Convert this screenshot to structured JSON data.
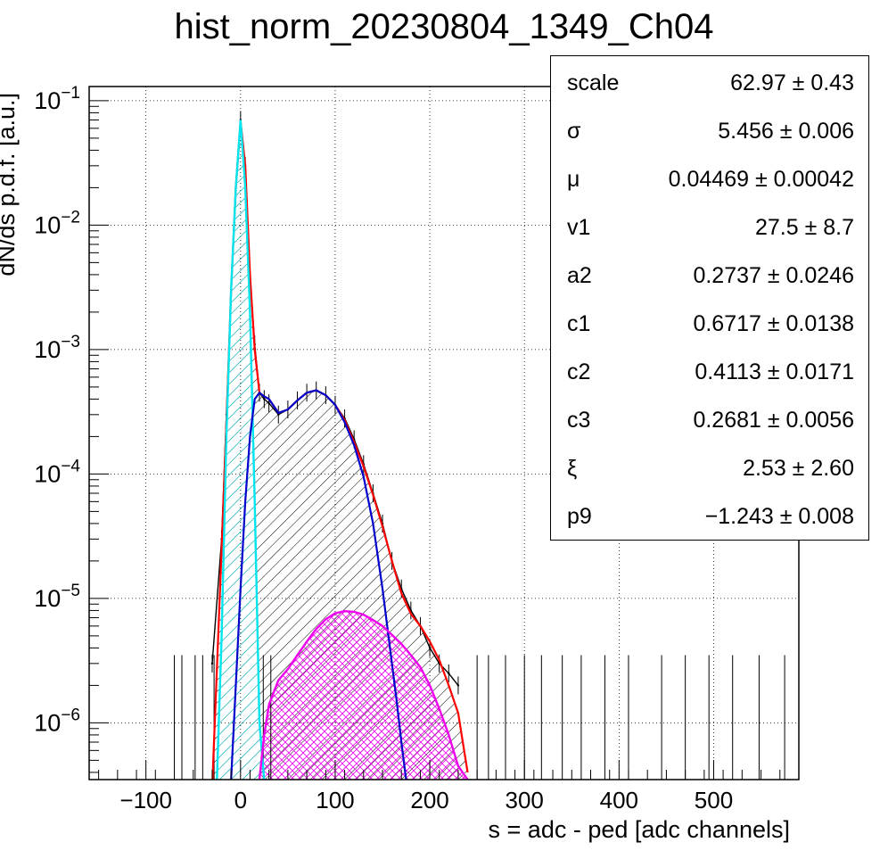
{
  "title": "hist_norm_20230804_1349_Ch04",
  "chart_data": {
    "type": "line",
    "title": "hist_norm_20230804_1349_Ch04",
    "xlabel": "s = adc - ped [adc channels]",
    "ylabel": "dN/ds p.d.f. [a.u.]",
    "xlim": [
      -160,
      590
    ],
    "ylim": [
      3.5e-07,
      0.13
    ],
    "y_scale": "log",
    "grid": true,
    "x_ticks": [
      "−100",
      "0",
      "100",
      "200",
      "300",
      "400",
      "500"
    ],
    "x_tick_values": [
      -100,
      0,
      100,
      200,
      300,
      400,
      500
    ],
    "y_tick_values": [
      1e-06,
      1e-05,
      0.0001,
      0.001,
      0.01,
      0.1
    ],
    "y_tick_exponents": [
      "−6",
      "−5",
      "−4",
      "−3",
      "−2",
      "−1"
    ],
    "y_tick_base": "10",
    "series": [
      {
        "role": "histogram",
        "color": "#000000",
        "x": [
          -30,
          -20,
          -15,
          -10,
          -5,
          0,
          5,
          10,
          15,
          20,
          25,
          30,
          40,
          50,
          60,
          70,
          80,
          90,
          100,
          110,
          120,
          130,
          140,
          150,
          160,
          170,
          180,
          190,
          200,
          210,
          220,
          230
        ],
        "y": [
          3e-06,
          3e-05,
          0.0003,
          0.003,
          0.02,
          0.07,
          0.03,
          0.004,
          0.0011,
          0.00045,
          0.0004,
          0.00037,
          0.0003,
          0.00033,
          0.00039,
          0.00045,
          0.00047,
          0.00043,
          0.00036,
          0.00028,
          0.00019,
          0.00012,
          7e-05,
          4e-05,
          2e-05,
          1.2e-05,
          8e-06,
          6e-06,
          4e-06,
          3e-06,
          2.5e-06,
          2e-06
        ]
      },
      {
        "role": "total fit",
        "color": "#ff0000",
        "x": [
          -30,
          -20,
          -15,
          -10,
          -5,
          0,
          5,
          10,
          15,
          20,
          25,
          30,
          40,
          50,
          60,
          70,
          80,
          90,
          100,
          110,
          120,
          130,
          140,
          150,
          160,
          170,
          180,
          190,
          200,
          210,
          220,
          230,
          240
        ],
        "y": [
          3e-07,
          2.5e-05,
          0.00025,
          0.003,
          0.02,
          0.068,
          0.03,
          0.004,
          0.001,
          0.00045,
          0.00042,
          0.0004,
          0.00031,
          0.00033,
          0.00039,
          0.00045,
          0.00047,
          0.00043,
          0.00036,
          0.00027,
          0.00018,
          0.000115,
          6.8e-05,
          3.8e-05,
          2e-05,
          1.1e-05,
          7.5e-06,
          6e-06,
          4.5e-06,
          3.2e-06,
          2e-06,
          1.2e-06,
          4e-07
        ]
      },
      {
        "role": "pedestal component",
        "color": "#00e5ee",
        "x": [
          -25,
          -20,
          -15,
          -10,
          -5,
          0,
          5,
          10,
          15,
          20,
          25
        ],
        "y": [
          3.5e-07,
          5e-06,
          0.0002,
          0.003,
          0.02,
          0.07,
          0.02,
          0.002,
          6e-05,
          1e-06,
          3.5e-07
        ]
      },
      {
        "role": "signal component",
        "color": "#0000cc",
        "x": [
          -10,
          -5,
          0,
          5,
          10,
          15,
          20,
          25,
          30,
          40,
          50,
          60,
          70,
          80,
          90,
          100,
          110,
          120,
          130,
          140,
          150,
          160,
          165,
          170,
          175
        ],
        "y": [
          3.5e-07,
          2e-06,
          1.2e-05,
          6e-05,
          0.0002,
          0.0004,
          0.00045,
          0.00042,
          0.0004,
          0.00031,
          0.00033,
          0.00039,
          0.00045,
          0.00047,
          0.00043,
          0.00036,
          0.00026,
          0.00017,
          9.5e-05,
          4e-05,
          1.2e-05,
          3e-06,
          1.5e-06,
          7e-07,
          3.5e-07
        ]
      },
      {
        "role": "second component",
        "color": "#ee00ee",
        "x": [
          20,
          25,
          30,
          40,
          50,
          60,
          70,
          80,
          90,
          100,
          110,
          120,
          130,
          140,
          150,
          160,
          170,
          180,
          190,
          200,
          210,
          220,
          230,
          240
        ],
        "y": [
          3.5e-07,
          8e-07,
          1.4e-06,
          2.2e-06,
          2.7e-06,
          3.5e-06,
          4.5e-06,
          5.7e-06,
          6.8e-06,
          7.6e-06,
          7.9e-06,
          7.8e-06,
          7.4e-06,
          6.7e-06,
          6e-06,
          5.1e-06,
          4.3e-06,
          3.5e-06,
          2.8e-06,
          2e-06,
          1.3e-06,
          8e-07,
          4.5e-07,
          3.5e-07
        ]
      }
    ]
  },
  "stats": [
    {
      "name": "scale",
      "value": "62.97 ± 0.43"
    },
    {
      "name": "σ",
      "value": "5.456 ± 0.006"
    },
    {
      "name": "μ",
      "value": "0.04469 ± 0.00042"
    },
    {
      "name": "v1",
      "value": "27.5 ± 8.7"
    },
    {
      "name": "a2",
      "value": "0.2737 ± 0.0246"
    },
    {
      "name": "c1",
      "value": "0.6717 ± 0.0138"
    },
    {
      "name": "c2",
      "value": "0.4113 ± 0.0171"
    },
    {
      "name": "c3",
      "value": "0.2681 ± 0.0056"
    },
    {
      "name": "ξ",
      "value": "2.53 ± 2.60"
    },
    {
      "name": "p9",
      "value": "−1.243 ± 0.008"
    }
  ]
}
